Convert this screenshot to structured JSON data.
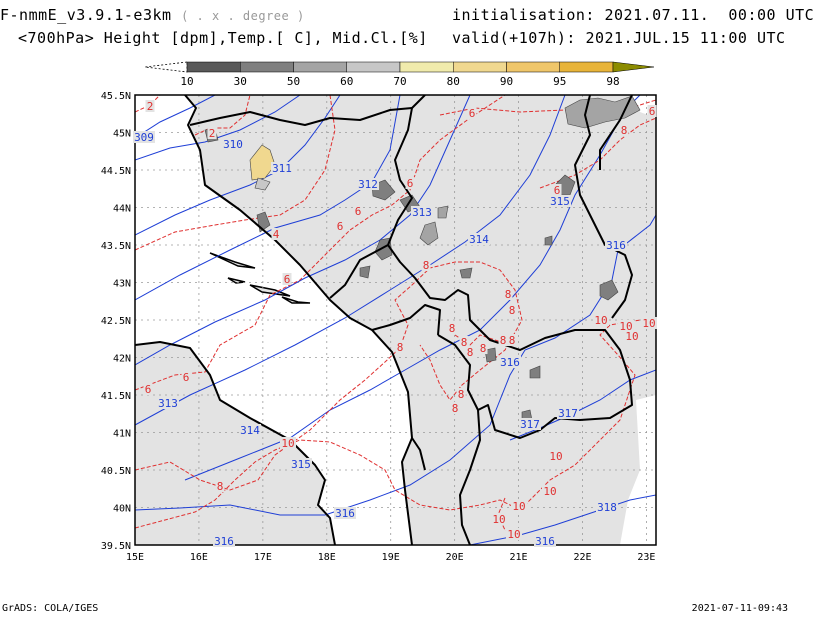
{
  "header": {
    "model": "F-nmmE_v3.9.1-e3km",
    "projection": "( . x . degree )",
    "fields": "<700hPa> Height [dpm],Temp.[ C], Mid.Cl.[%]",
    "init_label": "initialisation:",
    "init_value": "2021.07.11.  00:00 UTC",
    "valid_label": "valid(+107h):",
    "valid_value": "2021.JUL.15 11:00 UTC"
  },
  "colorbar": {
    "ticks": [
      "10",
      "30",
      "50",
      "60",
      "70",
      "80",
      "90",
      "95",
      "98"
    ],
    "colors": [
      "#ffffff",
      "#595959",
      "#7f7f7f",
      "#a4a4a4",
      "#c7c7c7",
      "#f0ebac",
      "#f0d88f",
      "#efc66a",
      "#e8b43a",
      "#8c8c00"
    ]
  },
  "axes": {
    "lat_ticks": [
      "45.5N",
      "45N",
      "44.5N",
      "44N",
      "43.5N",
      "43N",
      "42.5N",
      "42N",
      "41.5N",
      "41N",
      "40.5N",
      "40N",
      "39.5N"
    ],
    "lon_ticks": [
      "15E",
      "16E",
      "17E",
      "18E",
      "19E",
      "20E",
      "21E",
      "22E",
      "23E"
    ]
  },
  "height_contours": [
    {
      "value": "309",
      "color": "#1f3fd6"
    },
    {
      "value": "310",
      "color": "#1f3fd6"
    },
    {
      "value": "311",
      "color": "#1f3fd6"
    },
    {
      "value": "312",
      "color": "#1f3fd6"
    },
    {
      "value": "313",
      "color": "#1f3fd6"
    },
    {
      "value": "314",
      "color": "#1f3fd6"
    },
    {
      "value": "315",
      "color": "#1f3fd6"
    },
    {
      "value": "316",
      "color": "#1f3fd6"
    },
    {
      "value": "317",
      "color": "#1f3fd6"
    },
    {
      "value": "318",
      "color": "#1f3fd6"
    }
  ],
  "temp_contours": [
    {
      "value": "2",
      "color": "#e03030"
    },
    {
      "value": "4",
      "color": "#e03030"
    },
    {
      "value": "6",
      "color": "#e03030"
    },
    {
      "value": "8",
      "color": "#e03030"
    },
    {
      "value": "10",
      "color": "#e03030"
    }
  ],
  "colors": {
    "land": "#e3e3e3",
    "height": "#1f3fd6",
    "temp": "#e03030",
    "border": "#000000",
    "grid": "#9a9a9a"
  },
  "footer": {
    "left": "GrADS: COLA/IGES",
    "right": "2021-07-11-09:43"
  }
}
